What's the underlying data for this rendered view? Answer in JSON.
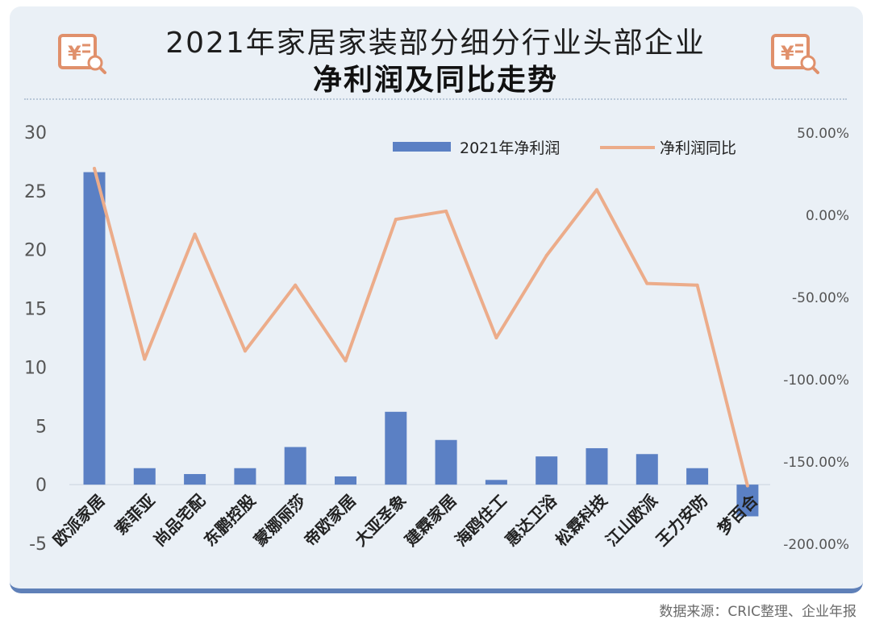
{
  "title_line1": "2021年家居家装部分细分行业头部企业",
  "title_line2": "净利润及同比走势",
  "source": "数据来源：CRIC整理、企业年报",
  "icons": {
    "left": "receipt-yen-search-icon",
    "right": "receipt-yen-search-icon"
  },
  "colors": {
    "bar": "#5b80c4",
    "line": "#ecac8a",
    "frame": "#eaf0f6",
    "frame_border": "#5f80b8"
  },
  "chart_data": {
    "type": "bar+line",
    "categories": [
      "欧派家居",
      "索菲亚",
      "尚品宅配",
      "东鹏控股",
      "蒙娜丽莎",
      "帝欧家居",
      "大亚圣象",
      "建霖家居",
      "海鸥住工",
      "惠达卫浴",
      "松霖科技",
      "江山欧派",
      "王力安防",
      "梦百合"
    ],
    "series": [
      {
        "name": "2021年净利润",
        "type": "bar",
        "axis": "left",
        "values": [
          26.6,
          1.4,
          0.9,
          1.4,
          3.2,
          0.7,
          6.2,
          3.8,
          0.4,
          2.4,
          3.1,
          2.6,
          1.4,
          -2.7
        ]
      },
      {
        "name": "净利润同比",
        "type": "line",
        "axis": "right",
        "values": [
          28.0,
          -88.0,
          -12.0,
          -83.0,
          -43.0,
          -89.0,
          -3.0,
          2.0,
          -75.0,
          -25.0,
          15.0,
          -42.0,
          -43.0,
          -165.0
        ]
      }
    ],
    "y_left": {
      "min": -5,
      "max": 30,
      "ticks": [
        "30",
        "25",
        "20",
        "15",
        "10",
        "5",
        "0",
        "-5"
      ],
      "tick_values": [
        30,
        25,
        20,
        15,
        10,
        5,
        0,
        -5
      ]
    },
    "y_right": {
      "ticks": [
        "50.00%",
        "0.00%",
        "-50.00%",
        "-100.00%",
        "-150.00%",
        "-200.00%"
      ],
      "tick_values": [
        50,
        0,
        -50,
        -100,
        -150,
        -200
      ]
    },
    "legend_position": "top-right",
    "grid": false
  }
}
